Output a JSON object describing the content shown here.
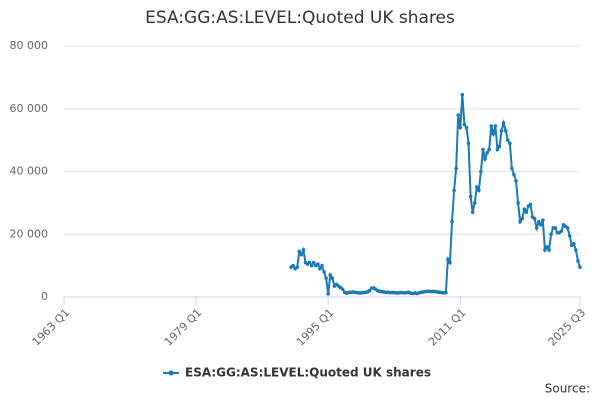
{
  "chart_data": {
    "type": "line",
    "title": "ESA:GG:AS:LEVEL:Quoted UK shares",
    "source_label": "Source:",
    "x": [
      "1990 Q3",
      "1990 Q4",
      "1991 Q1",
      "1991 Q2",
      "1991 Q3",
      "1991 Q4",
      "1992 Q1",
      "1992 Q2",
      "1992 Q3",
      "1992 Q4",
      "1993 Q1",
      "1993 Q2",
      "1993 Q3",
      "1993 Q4",
      "1994 Q1",
      "1994 Q2",
      "1994 Q3",
      "1994 Q4",
      "1995 Q1",
      "1995 Q2",
      "1995 Q3",
      "1995 Q4",
      "1996 Q1",
      "1996 Q2",
      "1996 Q3",
      "1996 Q4",
      "1997 Q1",
      "1997 Q2",
      "1997 Q3",
      "1997 Q4",
      "1998 Q1",
      "1998 Q2",
      "1998 Q3",
      "1998 Q4",
      "1999 Q1",
      "1999 Q2",
      "1999 Q3",
      "1999 Q4",
      "2000 Q1",
      "2000 Q2",
      "2000 Q3",
      "2000 Q4",
      "2001 Q1",
      "2001 Q2",
      "2001 Q3",
      "2001 Q4",
      "2002 Q1",
      "2002 Q2",
      "2002 Q3",
      "2002 Q4",
      "2003 Q1",
      "2003 Q2",
      "2003 Q3",
      "2003 Q4",
      "2004 Q1",
      "2004 Q2",
      "2004 Q3",
      "2004 Q4",
      "2005 Q1",
      "2005 Q2",
      "2005 Q3",
      "2005 Q4",
      "2006 Q1",
      "2006 Q2",
      "2006 Q3",
      "2006 Q4",
      "2007 Q1",
      "2007 Q2",
      "2007 Q3",
      "2007 Q4",
      "2008 Q1",
      "2008 Q2",
      "2008 Q3",
      "2008 Q4",
      "2009 Q1",
      "2009 Q2",
      "2009 Q3",
      "2009 Q4",
      "2010 Q1",
      "2010 Q2",
      "2010 Q3",
      "2010 Q4",
      "2011 Q1",
      "2011 Q2",
      "2011 Q3",
      "2011 Q4",
      "2012 Q1",
      "2012 Q2",
      "2012 Q3",
      "2012 Q4",
      "2013 Q1",
      "2013 Q2",
      "2013 Q3",
      "2013 Q4",
      "2014 Q1",
      "2014 Q2",
      "2014 Q3",
      "2014 Q4",
      "2015 Q1",
      "2015 Q2",
      "2015 Q3",
      "2015 Q4",
      "2016 Q1",
      "2016 Q2",
      "2016 Q3",
      "2016 Q4",
      "2017 Q1",
      "2017 Q2",
      "2017 Q3",
      "2017 Q4",
      "2018 Q1",
      "2018 Q2",
      "2018 Q3",
      "2018 Q4",
      "2019 Q1",
      "2019 Q2",
      "2019 Q3",
      "2019 Q4",
      "2020 Q1",
      "2020 Q2",
      "2020 Q3",
      "2020 Q4",
      "2021 Q1",
      "2021 Q2",
      "2021 Q3",
      "2021 Q4",
      "2022 Q1",
      "2022 Q2",
      "2022 Q3",
      "2022 Q4",
      "2023 Q1",
      "2023 Q2",
      "2023 Q3",
      "2023 Q4",
      "2024 Q1",
      "2024 Q2",
      "2024 Q3",
      "2024 Q4",
      "2025 Q1",
      "2025 Q2",
      "2025 Q3"
    ],
    "series": [
      {
        "name": "ESA:GG:AS:LEVEL:Quoted UK shares",
        "color": "#1a7ab5",
        "values": [
          9500,
          10000,
          9000,
          9500,
          14500,
          13500,
          15000,
          11000,
          10500,
          11000,
          10000,
          11000,
          10000,
          10500,
          9000,
          10000,
          8000,
          6000,
          1000,
          7000,
          6000,
          3500,
          4000,
          3500,
          3000,
          2500,
          1500,
          1200,
          1500,
          1500,
          1600,
          1500,
          1400,
          1300,
          1300,
          1400,
          1500,
          1600,
          2000,
          2800,
          2900,
          2500,
          2000,
          1800,
          1700,
          1600,
          1500,
          1500,
          1400,
          1400,
          1400,
          1300,
          1300,
          1400,
          1400,
          1300,
          1400,
          1500,
          1200,
          1100,
          1300,
          1100,
          1300,
          1500,
          1600,
          1700,
          1800,
          1800,
          1700,
          1800,
          1700,
          1600,
          1500,
          1400,
          1300,
          1400,
          12000,
          11000,
          24000,
          34000,
          41000,
          58000,
          54000,
          64500,
          55000,
          54000,
          49000,
          32000,
          27000,
          30000,
          35000,
          34000,
          40000,
          47000,
          44000,
          46000,
          47000,
          54500,
          52000,
          54500,
          47000,
          48000,
          53000,
          55500,
          53000,
          50000,
          49000,
          41000,
          39000,
          37000,
          30000,
          24000,
          25000,
          28000,
          27000,
          29000,
          29500,
          25500,
          25000,
          22000,
          24000,
          23000,
          24500,
          15000,
          16000,
          15000,
          20000,
          22000,
          22000,
          20500,
          20500,
          21000,
          23000,
          22500,
          22000,
          19500,
          16500,
          17000,
          15000,
          11500,
          9500
        ]
      }
    ],
    "xlim": [
      "1963 Q1",
      "2025 Q3"
    ],
    "xticks": [
      "1963 Q1",
      "1979 Q1",
      "1995 Q1",
      "2011 Q1",
      "2025 Q3"
    ],
    "ylim": [
      0,
      80000
    ],
    "yticks": [
      0,
      {
        "value": 20000,
        "label": "20 000"
      },
      {
        "value": 40000,
        "label": "40 000"
      },
      {
        "value": 60000,
        "label": "60 000"
      },
      {
        "value": 80000,
        "label": "80 000"
      }
    ],
    "grid": true
  }
}
